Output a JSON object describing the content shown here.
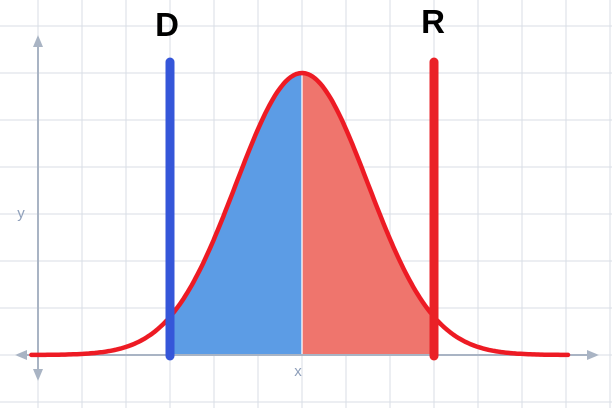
{
  "chart_data": {
    "type": "area",
    "title": "",
    "description": "Normal distribution (bell curve) with two vertical boundary lines D and R at symmetric points; area under the curve shaded blue left of the mean and red/salmon right of the mean",
    "xlabel": "x",
    "ylabel": "y",
    "curve": {
      "name": "bell-curve",
      "shape": "gaussian",
      "mean": 0,
      "sigma": 1,
      "x_range": [
        -4.1,
        4.05
      ],
      "color": "#ed1b24"
    },
    "boundaries": [
      {
        "label": "D",
        "x": -2,
        "color": "#3556d9"
      },
      {
        "label": "R",
        "x": 2,
        "color": "#ea2127"
      }
    ],
    "regions": [
      {
        "name": "left-of-mean",
        "from": -2,
        "to": 0,
        "color": "#5c9ce5"
      },
      {
        "name": "right-of-mean",
        "from": 0,
        "to": 2,
        "color": "#ef756d"
      }
    ],
    "grid": "on",
    "axis_color": "#a9b4c4",
    "grid_color": "#d9dee6",
    "axis_label_color": "#8e9fba",
    "boundary_label_color": "#000000"
  }
}
